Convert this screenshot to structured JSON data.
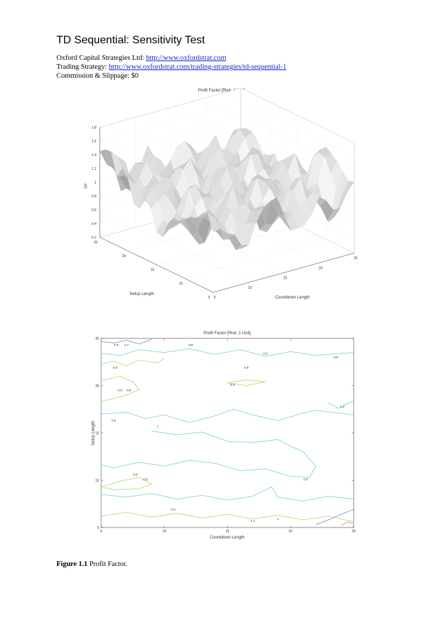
{
  "document": {
    "title": "TD Sequential: Sensitivity Test",
    "lines": [
      {
        "label": "Oxford Capital Strategies Ltd: ",
        "link": "http://www.oxfordstrat.com"
      },
      {
        "label": "Trading Strategy: ",
        "link": "http://www.oxfordstrat.com/trading-strategies/td-sequential-1"
      },
      {
        "label": "Commission & Slippage: $0",
        "link": ""
      }
    ],
    "caption_bold": "Figure 1.1",
    "caption_text": " Profit Factor."
  },
  "chart_data": [
    {
      "type": "surface",
      "title": "Profit Factor [Risk: 1 Unit]",
      "xlabel": "Countdown Length",
      "ylabel": "Setup Length",
      "zlabel": "PF",
      "xlim": [
        5,
        25
      ],
      "ylim": [
        5,
        25
      ],
      "zlim": [
        0.2,
        1.8
      ],
      "xticks": [
        "5",
        "10",
        "15",
        "20",
        "25"
      ],
      "yticks": [
        "5",
        "10",
        "15",
        "20",
        "25"
      ],
      "zticks": [
        "0.2",
        "0.4",
        "0.6",
        "0.8",
        "1",
        "1.2",
        "1.4",
        "1.6",
        "1.8"
      ],
      "grid": true
    },
    {
      "type": "contour",
      "title": "Profit Factor [Risk: 1 Unit]",
      "xlabel": "Countdown Length",
      "ylabel": "Setup Length",
      "xlim": [
        5,
        25
      ],
      "ylim": [
        5,
        25
      ],
      "xticks": [
        "5",
        "10",
        "15",
        "20",
        "25"
      ],
      "yticks": [
        "5",
        "10",
        "15",
        "20",
        "25"
      ],
      "levels": [
        0.8,
        0.9,
        1,
        1.1,
        1.2
      ],
      "labels": [
        {
          "text": "0.9",
          "x": 6.2,
          "y": 24.2
        },
        {
          "text": "1.2",
          "x": 7.0,
          "y": 24.2
        },
        {
          "text": "0.8",
          "x": 12.1,
          "y": 24.2
        },
        {
          "text": "0.9",
          "x": 18.0,
          "y": 23.3
        },
        {
          "text": "0.8",
          "x": 23.6,
          "y": 22.9
        },
        {
          "text": "0.8",
          "x": 6.1,
          "y": 21.8
        },
        {
          "text": "0.8",
          "x": 16.5,
          "y": 21.8
        },
        {
          "text": "0.8",
          "x": 6.5,
          "y": 19.4
        },
        {
          "text": "0.8",
          "x": 7.2,
          "y": 19.4
        },
        {
          "text": "0.8",
          "x": 15.4,
          "y": 20.0
        },
        {
          "text": "1.2",
          "x": 24.1,
          "y": 17.7
        },
        {
          "text": "0.8",
          "x": 6.0,
          "y": 16.2
        },
        {
          "text": "1",
          "x": 9.5,
          "y": 15.6
        },
        {
          "text": "0.8",
          "x": 7.7,
          "y": 10.5
        },
        {
          "text": "0.9",
          "x": 8.5,
          "y": 10.0
        },
        {
          "text": "0.8",
          "x": 21.2,
          "y": 10.0
        },
        {
          "text": "0.9",
          "x": 10.7,
          "y": 6.8
        },
        {
          "text": "1.2",
          "x": 17.0,
          "y": 5.6
        },
        {
          "text": "1",
          "x": 19.0,
          "y": 5.8
        }
      ]
    }
  ]
}
